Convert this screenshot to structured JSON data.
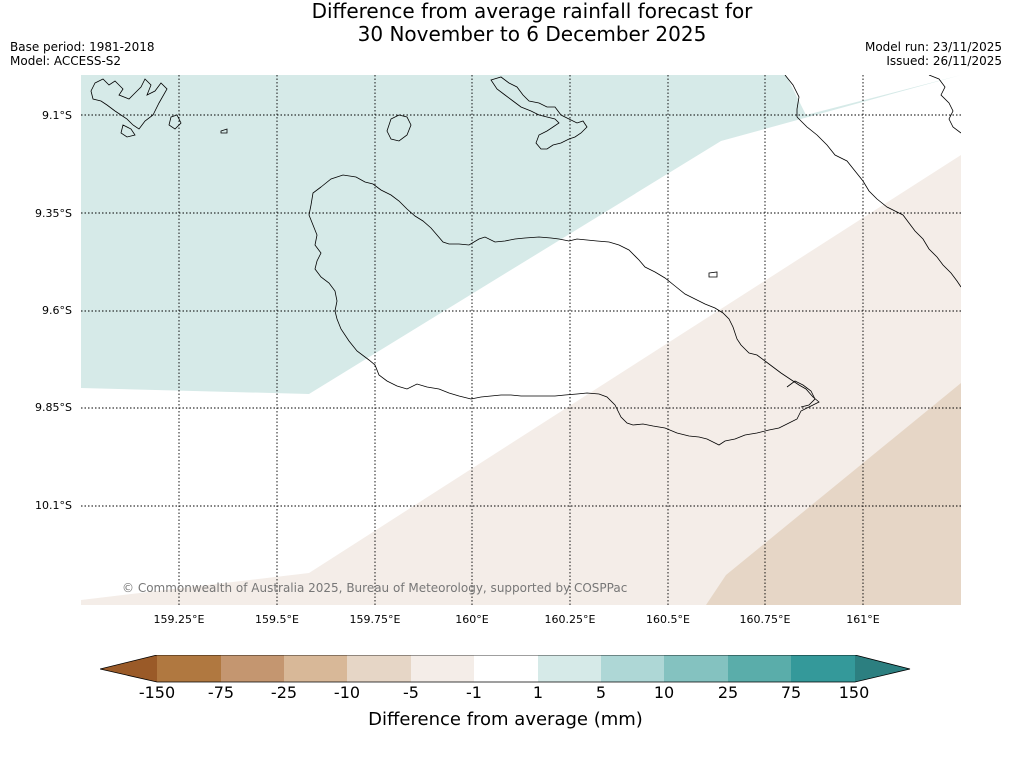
{
  "title": {
    "line1": "Difference from average rainfall forecast for",
    "line2": "30 November to 6 December 2025"
  },
  "meta": {
    "base_period": "Base period: 1981-2018",
    "model": "Model: ACCESS-S2",
    "model_run": "Model run: 23/11/2025",
    "issued": "Issued: 26/11/2025"
  },
  "map": {
    "lat_labels": [
      "9.1°S",
      "9.35°S",
      "9.6°S",
      "9.85°S",
      "10.1°S"
    ],
    "lon_labels": [
      "159.25°E",
      "159.5°E",
      "159.75°E",
      "160°E",
      "160.25°E",
      "160.5°E",
      "160.75°E",
      "161°E"
    ],
    "copyright": "© Commonwealth of Australia 2025, Bureau of Meteorology, supported by COSPPac"
  },
  "colorbar": {
    "label": "Difference from average (mm)",
    "ticks": [
      "-150",
      "-75",
      "-25",
      "-10",
      "-5",
      "-1",
      "1",
      "5",
      "10",
      "25",
      "75",
      "150"
    ],
    "colors": [
      "#9a5a28",
      "#b07840",
      "#c49670",
      "#d8b898",
      "#e6d6c6",
      "#f4ede8",
      "#ffffff",
      "#d6eae8",
      "#aed7d6",
      "#84c2c0",
      "#5aadaa",
      "#34999a",
      "#2c7f80"
    ]
  }
}
